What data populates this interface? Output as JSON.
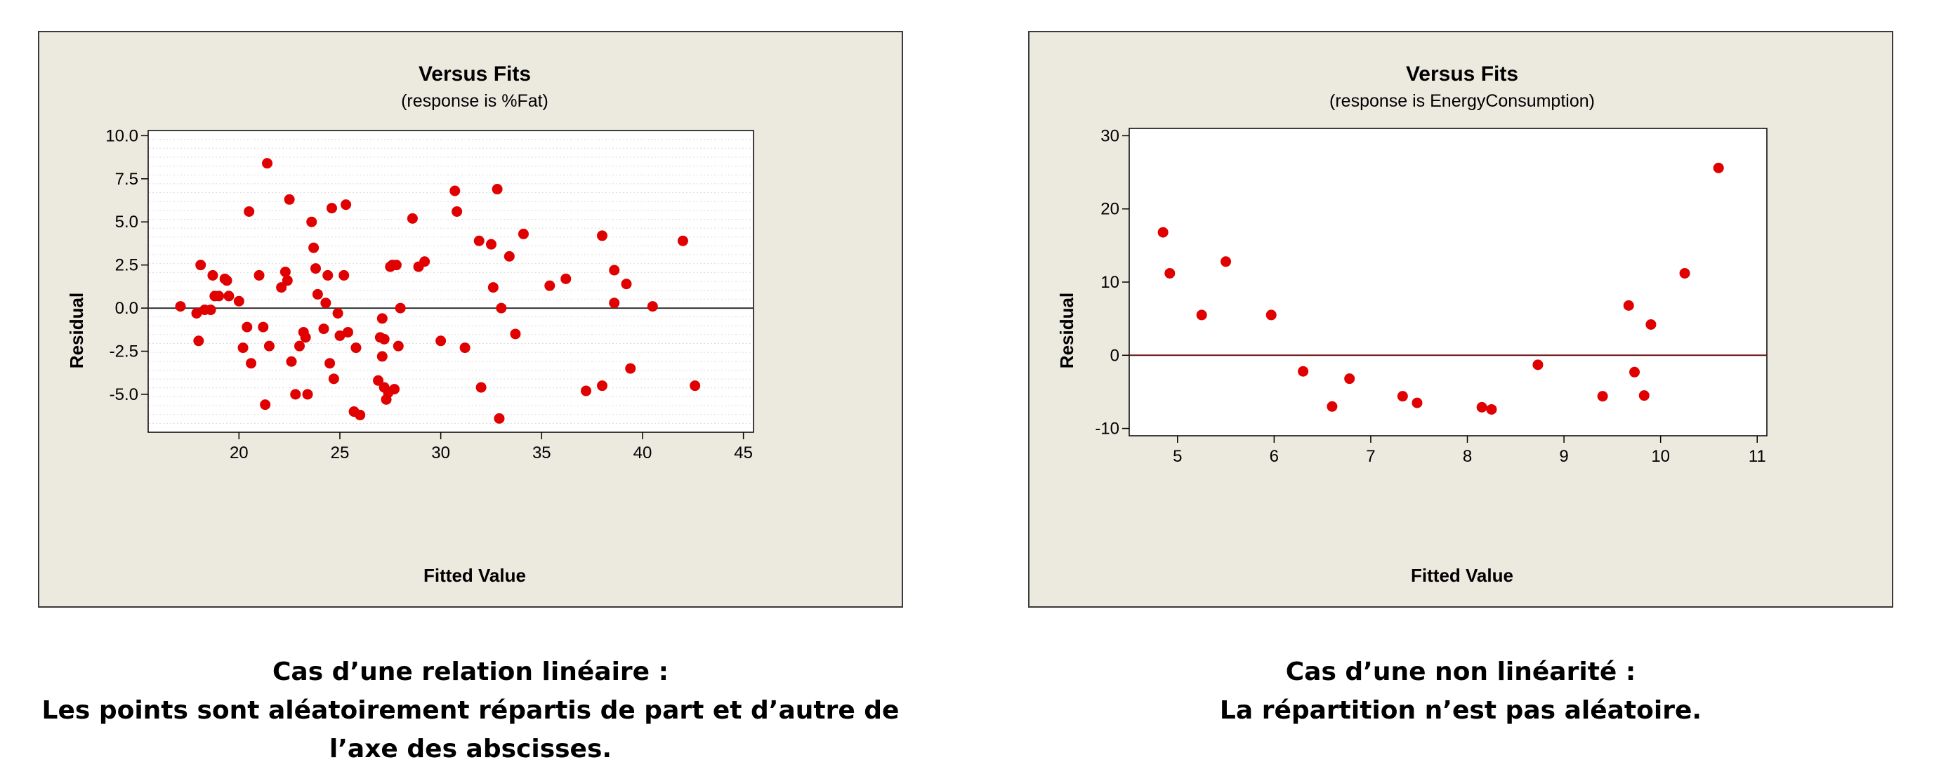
{
  "colors": {
    "point": "#E00000",
    "panel_bg": "#ECE9DF",
    "plot_bg": "#FFFFFF",
    "refline_left": "#333333",
    "refline_right": "#6B0F0F"
  },
  "chart_data": [
    {
      "type": "scatter",
      "title": "Versus Fits",
      "subtitle": "(response is %Fat)",
      "xlabel": "Fitted Value",
      "ylabel": "Residual",
      "xlim": [
        15.5,
        45.5
      ],
      "ylim": [
        -7.2,
        10.3
      ],
      "xticks": [
        20,
        25,
        30,
        35,
        40,
        45
      ],
      "yticks": [
        -5.0,
        -2.5,
        0.0,
        2.5,
        5.0,
        7.5,
        10.0
      ],
      "xtick_labels": [
        "20",
        "25",
        "30",
        "35",
        "40",
        "45"
      ],
      "ytick_labels": [
        "-5.0",
        "-2.5",
        "0.0",
        "2.5",
        "5.0",
        "7.5",
        "10.0"
      ],
      "reference_line_y": 0,
      "grid": "faint horizontal dotted",
      "x": [
        17.1,
        17.9,
        18.0,
        18.1,
        18.3,
        18.6,
        18.7,
        18.8,
        19.0,
        19.3,
        19.4,
        19.5,
        20.0,
        20.2,
        20.4,
        20.5,
        20.6,
        21.0,
        21.2,
        21.3,
        21.4,
        21.5,
        22.1,
        22.3,
        22.4,
        22.5,
        22.6,
        22.8,
        23.0,
        23.2,
        23.3,
        23.4,
        23.6,
        23.7,
        23.8,
        23.9,
        24.2,
        24.3,
        24.4,
        24.5,
        24.6,
        24.7,
        24.9,
        25.0,
        25.2,
        25.3,
        25.4,
        25.7,
        25.8,
        26.0,
        26.9,
        27.0,
        27.1,
        27.1,
        27.2,
        27.2,
        27.3,
        27.4,
        27.5,
        27.6,
        27.7,
        27.8,
        27.9,
        28.0,
        28.6,
        28.9,
        29.2,
        30.0,
        30.7,
        30.8,
        31.2,
        31.9,
        32.0,
        32.5,
        32.6,
        32.8,
        32.9,
        33.0,
        33.4,
        33.7,
        34.1,
        35.4,
        36.2,
        37.2,
        38.0,
        38.0,
        38.6,
        38.6,
        39.2,
        39.4,
        40.5,
        42.0,
        42.6
      ],
      "y": [
        0.1,
        -0.3,
        -1.9,
        2.5,
        -0.1,
        -0.1,
        1.9,
        0.7,
        0.7,
        1.7,
        1.6,
        0.7,
        0.4,
        -2.3,
        -1.1,
        5.6,
        -3.2,
        1.9,
        -1.1,
        -5.6,
        8.4,
        -2.2,
        1.2,
        2.1,
        1.6,
        6.3,
        -3.1,
        -5.0,
        -2.2,
        -1.4,
        -1.7,
        -5.0,
        5.0,
        3.5,
        2.3,
        0.8,
        -1.2,
        0.3,
        1.9,
        -3.2,
        5.8,
        -4.1,
        -0.3,
        -1.6,
        1.9,
        6.0,
        -1.4,
        -6.0,
        -2.3,
        -6.2,
        -4.2,
        -1.7,
        -2.8,
        -0.6,
        -1.8,
        -4.6,
        -5.3,
        -4.9,
        2.4,
        2.5,
        -4.7,
        2.5,
        -2.2,
        0.0,
        5.2,
        2.4,
        2.7,
        -1.9,
        6.8,
        5.6,
        -2.3,
        3.9,
        -4.6,
        3.7,
        1.2,
        6.9,
        -6.4,
        0.0,
        3.0,
        -1.5,
        4.3,
        1.3,
        1.7,
        -4.8,
        4.2,
        -4.5,
        2.2,
        0.3,
        1.4,
        -3.5,
        0.1,
        3.9,
        -4.5
      ]
    },
    {
      "type": "scatter",
      "title": "Versus Fits",
      "subtitle": "(response is EnergyConsumption)",
      "xlabel": "Fitted Value",
      "ylabel": "Residual",
      "xlim": [
        4.5,
        11.1
      ],
      "ylim": [
        -11,
        31
      ],
      "xticks": [
        5,
        6,
        7,
        8,
        9,
        10,
        11
      ],
      "yticks": [
        -10,
        0,
        10,
        20,
        30
      ],
      "xtick_labels": [
        "5",
        "6",
        "7",
        "8",
        "9",
        "10",
        "11"
      ],
      "ytick_labels": [
        "-10",
        "0",
        "10",
        "20",
        "30"
      ],
      "reference_line_y": 0,
      "grid": "none",
      "x": [
        4.85,
        4.92,
        5.25,
        5.5,
        5.97,
        6.3,
        6.6,
        6.78,
        7.33,
        7.48,
        8.15,
        8.25,
        8.73,
        9.4,
        9.67,
        9.73,
        9.83,
        9.9,
        10.25,
        10.6
      ],
      "y": [
        16.8,
        11.2,
        5.5,
        12.8,
        5.5,
        -2.2,
        -7.0,
        -3.2,
        -5.6,
        -6.5,
        -7.1,
        -7.4,
        -1.3,
        -5.6,
        6.8,
        -2.3,
        -5.5,
        4.2,
        11.2,
        25.6
      ]
    }
  ],
  "captions": {
    "left": [
      "Cas d’une relation linéaire :",
      "Les points sont aléatoirement répartis de part et d’autre de",
      "l’axe des abscisses."
    ],
    "right": [
      "Cas d’une non linéarité :",
      "La répartition n’est pas aléatoire."
    ]
  }
}
